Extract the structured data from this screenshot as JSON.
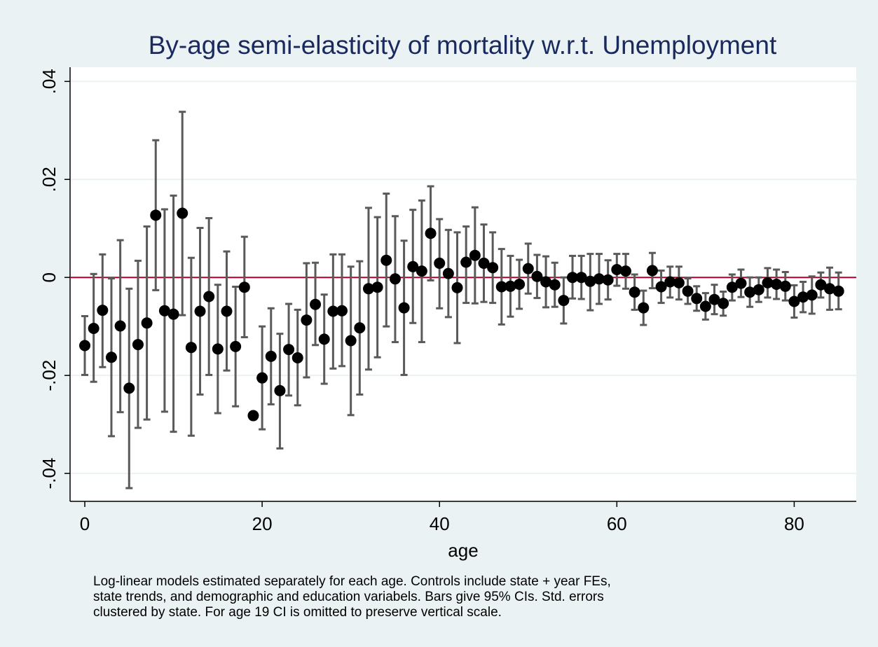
{
  "chart_data": {
    "type": "errorbar",
    "title": "By-age semi-elasticity of mortality w.r.t. Unemployment",
    "x_label": "age",
    "note": [
      "Log-linear models estimated separately for each age.  Controls include state + year FEs,",
      "state trends, and demographic and education variabels.  Bars give 95% CIs.  Std. errors",
      "clustered by state.  For age 19 CI is omitted to preserve vertical scale."
    ],
    "x": [
      0,
      1,
      2,
      3,
      4,
      5,
      6,
      7,
      8,
      9,
      10,
      11,
      12,
      13,
      14,
      15,
      16,
      17,
      18,
      19,
      20,
      21,
      22,
      23,
      24,
      25,
      26,
      27,
      28,
      29,
      30,
      31,
      32,
      33,
      34,
      35,
      36,
      37,
      38,
      39,
      40,
      41,
      42,
      43,
      44,
      45,
      46,
      47,
      48,
      49,
      50,
      51,
      52,
      53,
      54,
      55,
      56,
      57,
      58,
      59,
      60,
      61,
      62,
      63,
      64,
      65,
      66,
      67,
      68,
      69,
      70,
      71,
      72,
      73,
      74,
      75,
      76,
      77,
      78,
      79,
      80,
      81,
      82,
      83,
      84,
      85
    ],
    "values": [
      -0.0139,
      -0.0104,
      -0.0067,
      -0.0163,
      -0.0099,
      -0.0226,
      -0.0137,
      -0.0093,
      0.0127,
      -0.0068,
      -0.0075,
      0.0131,
      -0.0143,
      -0.0069,
      -0.0039,
      -0.0146,
      -0.0069,
      -0.0141,
      -0.002,
      -0.0282,
      -0.0205,
      -0.0161,
      -0.0231,
      -0.0147,
      -0.0164,
      -0.0087,
      -0.0055,
      -0.0126,
      -0.0069,
      -0.0068,
      -0.0129,
      -0.0103,
      -0.0023,
      -0.002,
      0.0035,
      -0.0003,
      -0.0062,
      0.0022,
      0.0013,
      0.009,
      0.0029,
      0.0008,
      -0.0021,
      0.0031,
      0.0045,
      0.0029,
      0.002,
      -0.0019,
      -0.0018,
      -0.0014,
      0.0018,
      0.0002,
      -0.0009,
      -0.0015,
      -0.0047,
      0,
      0,
      -0.0008,
      -0.0003,
      -0.0005,
      0.0016,
      0.0013,
      -0.003,
      -0.0062,
      0.0014,
      -0.0019,
      -0.0009,
      -0.0011,
      -0.0028,
      -0.0043,
      -0.0059,
      -0.0045,
      -0.0053,
      -0.002,
      -0.0012,
      -0.003,
      -0.0025,
      -0.0011,
      -0.0014,
      -0.0018,
      -0.0049,
      -0.004,
      -0.0036,
      -0.0015,
      -0.0023,
      -0.0028
    ],
    "lower": [
      -0.0199,
      -0.0213,
      -0.0183,
      -0.0324,
      -0.0275,
      -0.043,
      -0.0307,
      -0.029,
      -0.0026,
      -0.0274,
      -0.0315,
      -0.0077,
      -0.0323,
      -0.0239,
      -0.0199,
      -0.0277,
      -0.019,
      -0.0263,
      -0.0122,
      null,
      -0.031,
      -0.0259,
      -0.0349,
      -0.0241,
      -0.0261,
      -0.0204,
      -0.0138,
      -0.0217,
      -0.0186,
      -0.0181,
      -0.0281,
      -0.0239,
      -0.0188,
      -0.0163,
      -0.01,
      -0.0132,
      -0.0199,
      -0.0093,
      -0.0132,
      -0.0006,
      -0.0063,
      -0.0081,
      -0.0134,
      -0.0052,
      -0.0053,
      -0.005,
      -0.0052,
      -0.0096,
      -0.008,
      -0.0064,
      -0.0033,
      -0.0042,
      -0.0061,
      -0.006,
      -0.0094,
      -0.0043,
      -0.0044,
      -0.0067,
      -0.0054,
      -0.0045,
      -0.0017,
      -0.0023,
      -0.0066,
      -0.0097,
      -0.0022,
      -0.0052,
      -0.0041,
      -0.0045,
      -0.0054,
      -0.0068,
      -0.0086,
      -0.0075,
      -0.0078,
      -0.0047,
      -0.004,
      -0.006,
      -0.005,
      -0.0041,
      -0.0044,
      -0.0047,
      -0.0082,
      -0.0071,
      -0.0074,
      -0.0041,
      -0.0066,
      -0.0065
    ],
    "upper": [
      -0.0079,
      0.0007,
      0.0047,
      -0.0002,
      0.0076,
      -0.0023,
      0.0034,
      0.0104,
      0.028,
      0.0139,
      0.0167,
      0.0338,
      0.004,
      0.0101,
      0.0121,
      -0.0015,
      0.0053,
      -0.0019,
      0.0083,
      null,
      -0.01,
      -0.0063,
      -0.0115,
      -0.0054,
      -0.0066,
      0.0029,
      0.003,
      -0.0035,
      0.0047,
      0.0047,
      0.0022,
      0.0033,
      0.0142,
      0.0123,
      0.0171,
      0.0125,
      0.0075,
      0.0138,
      0.0157,
      0.0186,
      0.0119,
      0.0097,
      0.0092,
      0.0104,
      0.0143,
      0.0108,
      0.0092,
      0.0058,
      0.0044,
      0.0036,
      0.0069,
      0.0046,
      0.0043,
      0.003,
      0,
      0.0044,
      0.0044,
      0.0048,
      0.0048,
      0.0035,
      0.0048,
      0.0048,
      0.0006,
      -0.0027,
      0.005,
      0.0014,
      0.0022,
      0.0022,
      -0.0002,
      -0.0018,
      -0.0032,
      -0.0015,
      -0.0029,
      0.0006,
      0.0016,
      0,
      0,
      0.0019,
      0.0016,
      0.0011,
      -0.0016,
      -0.0009,
      0.0002,
      0.001,
      0.002,
      0.001
    ],
    "color": "#000000",
    "bar_color": "#5a5a5a",
    "reference_line": {
      "value": 0,
      "color": "#b0002e"
    },
    "xlim": [
      -1.66,
      87.0
    ],
    "ylim": [
      -0.0457,
      0.0429
    ],
    "xticks": [
      0,
      20,
      40,
      60,
      80
    ],
    "yticks": [
      {
        "value": -0.04,
        "label": "-.04"
      },
      {
        "value": -0.02,
        "label": "-.02"
      },
      0,
      {
        "value": 0.02,
        "label": ".02"
      },
      {
        "value": 0.04,
        "label": ".04"
      }
    ],
    "grid": true
  }
}
